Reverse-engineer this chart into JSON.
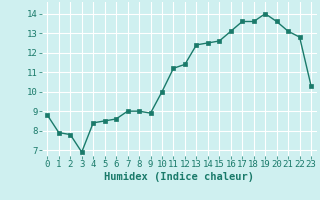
{
  "x": [
    0,
    1,
    2,
    3,
    4,
    5,
    6,
    7,
    8,
    9,
    10,
    11,
    12,
    13,
    14,
    15,
    16,
    17,
    18,
    19,
    20,
    21,
    22,
    23
  ],
  "y": [
    8.8,
    7.9,
    7.8,
    6.9,
    8.4,
    8.5,
    8.6,
    9.0,
    9.0,
    8.9,
    10.0,
    11.2,
    11.4,
    12.4,
    12.5,
    12.6,
    13.1,
    13.6,
    13.6,
    14.0,
    13.6,
    13.1,
    12.8,
    10.3
  ],
  "line_color": "#1a7a6a",
  "marker": "s",
  "markersize": 2.5,
  "linewidth": 1.0,
  "background_color": "#cff0f0",
  "grid_color": "#ffffff",
  "xlabel": "Humidex (Indice chaleur)",
  "xlabel_fontsize": 7.5,
  "xlim": [
    -0.5,
    23.5
  ],
  "ylim": [
    6.7,
    14.6
  ],
  "yticks": [
    7,
    8,
    9,
    10,
    11,
    12,
    13,
    14
  ],
  "xticks": [
    0,
    1,
    2,
    3,
    4,
    5,
    6,
    7,
    8,
    9,
    10,
    11,
    12,
    13,
    14,
    15,
    16,
    17,
    18,
    19,
    20,
    21,
    22,
    23
  ],
  "tick_fontsize": 6.5,
  "tick_color": "#1a7a6a"
}
